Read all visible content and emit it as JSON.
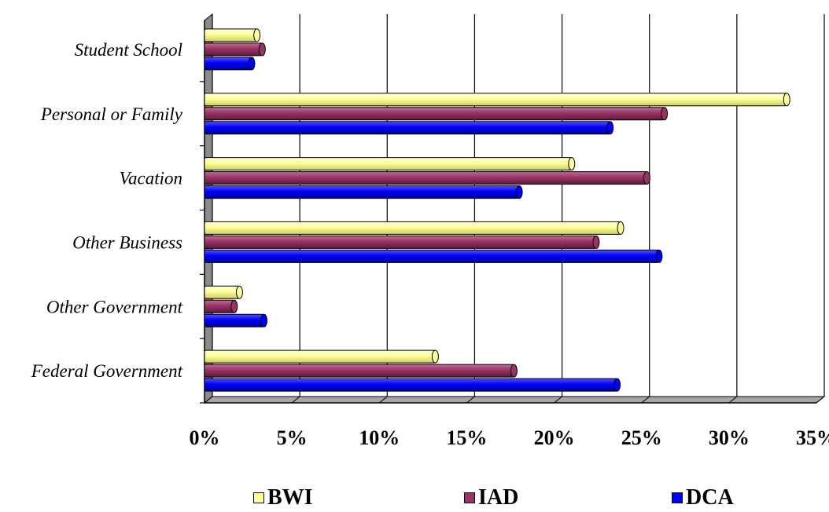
{
  "chart_data": {
    "type": "bar",
    "orientation": "horizontal",
    "categories": [
      "Student School",
      "Personal or Family",
      "Vacation",
      "Other Business",
      "Other Government",
      "Federal Government"
    ],
    "series": [
      {
        "name": "BWI",
        "color": "#ffff99",
        "values": [
          3.0,
          33.3,
          21.0,
          23.8,
          2.0,
          13.2
        ]
      },
      {
        "name": "IAD",
        "color": "#993366",
        "values": [
          3.3,
          26.3,
          25.3,
          22.4,
          1.7,
          17.7
        ]
      },
      {
        "name": "DCA",
        "color": "#0000ff",
        "values": [
          2.7,
          23.2,
          18.0,
          26.0,
          3.4,
          23.6
        ]
      }
    ],
    "x_ticks": [
      "0%",
      "5%",
      "10%",
      "15%",
      "20%",
      "25%",
      "30%",
      "35%"
    ],
    "xlim": [
      0,
      35
    ],
    "grid": true,
    "legend_position": "bottom"
  }
}
